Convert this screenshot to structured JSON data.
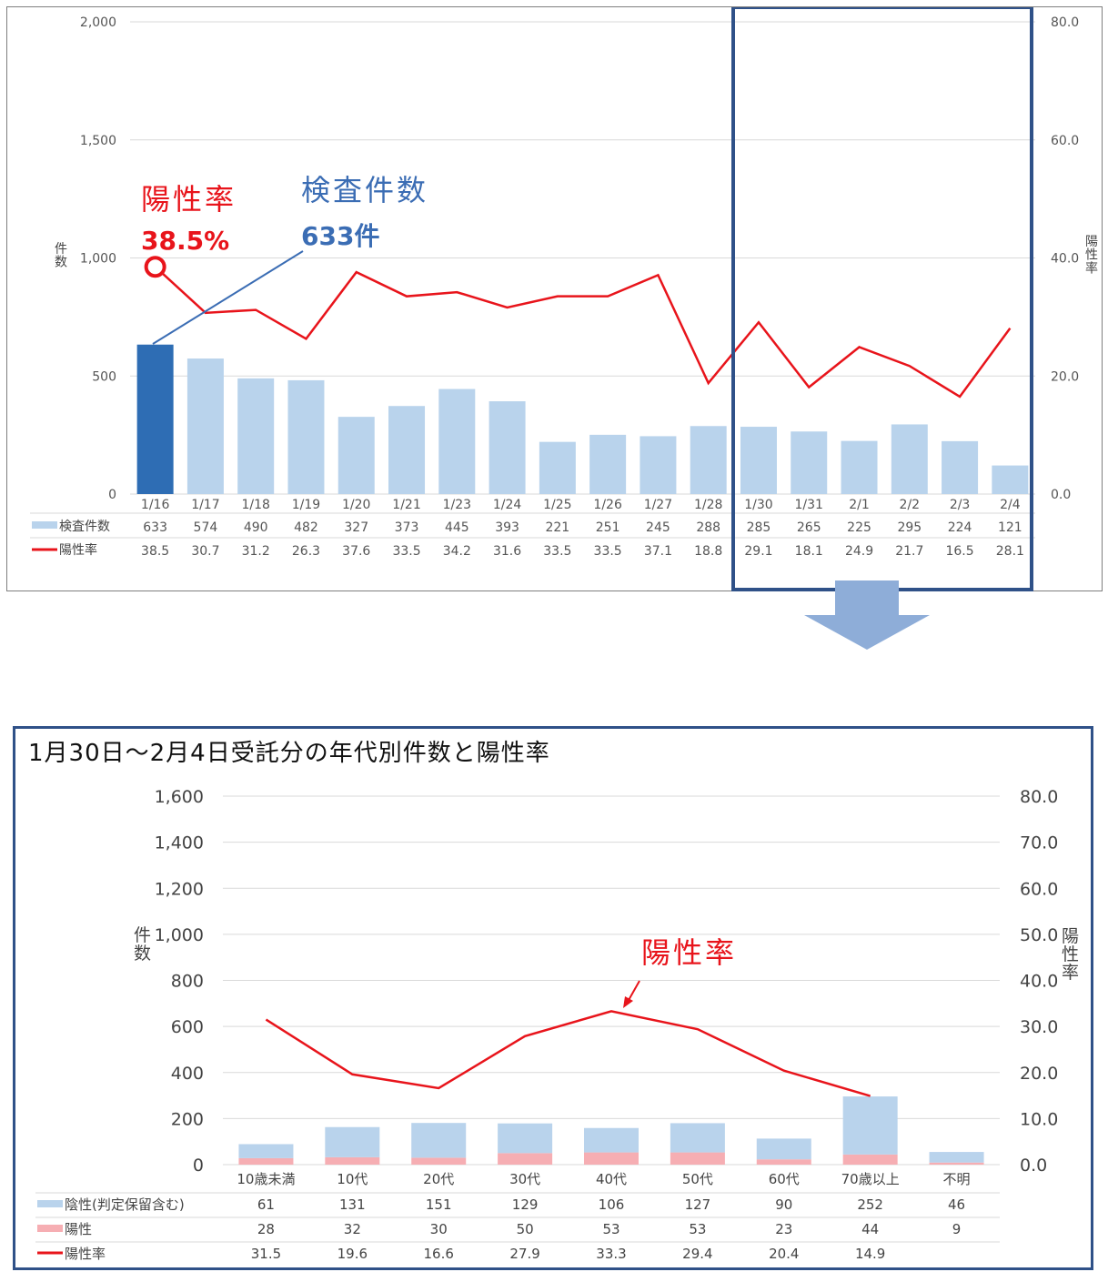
{
  "colors": {
    "bar_light": "#b9d3ec",
    "bar_highlight": "#2e6db4",
    "line_red": "#e8141b",
    "positive_pink": "#f6aeb3",
    "annotation_blue": "#3b6db4",
    "frame_navy": "#2f5188",
    "arrow_blue": "#8eadd8"
  },
  "top_chart": {
    "type": "bar",
    "y_left_ticks": [
      "2,000",
      "1,500",
      "1,000",
      "500",
      "0"
    ],
    "y_right_ticks": [
      "80.0",
      "60.0",
      "40.0",
      "20.0",
      "0.0"
    ],
    "y_left_label": "件数",
    "y_right_label": "陽性率",
    "legend_bar": "検査件数",
    "legend_line": "陽性率",
    "annotation_rate_label": "陽性率",
    "annotation_rate_value": "38.5%",
    "annotation_count_label": "検査件数",
    "annotation_count_value": "633件"
  },
  "bottom_chart": {
    "title": "1月30日～2月4日受託分の年代別件数と陽性率",
    "y_left_ticks": [
      "1,600",
      "1,400",
      "1,200",
      "1,000",
      "800",
      "600",
      "400",
      "200",
      "0"
    ],
    "y_right_ticks": [
      "80.0",
      "70.0",
      "60.0",
      "50.0",
      "40.0",
      "30.0",
      "20.0",
      "10.0",
      "0.0"
    ],
    "y_left_label": "件数",
    "y_right_label": "陽性率",
    "legend_negative": "陰性(判定保留含む)",
    "legend_positive": "陽性",
    "legend_rate": "陽性率",
    "annotation_rate_label": "陽性率"
  },
  "chart_data": [
    {
      "type": "bar",
      "categories": [
        "1/16",
        "1/17",
        "1/18",
        "1/19",
        "1/20",
        "1/21",
        "1/23",
        "1/24",
        "1/25",
        "1/26",
        "1/27",
        "1/28",
        "1/30",
        "1/31",
        "2/1",
        "2/2",
        "2/3",
        "2/4"
      ],
      "series": [
        {
          "name": "検査件数",
          "type": "bar",
          "axis": "left",
          "values": [
            633,
            574,
            490,
            482,
            327,
            373,
            445,
            393,
            221,
            251,
            245,
            288,
            285,
            265,
            225,
            295,
            224,
            121
          ]
        },
        {
          "name": "陽性率",
          "type": "line",
          "axis": "right",
          "values": [
            38.5,
            30.7,
            31.2,
            26.3,
            37.6,
            33.5,
            34.2,
            31.6,
            33.5,
            33.5,
            37.1,
            18.8,
            29.1,
            18.1,
            24.9,
            21.7,
            16.5,
            28.1
          ]
        }
      ],
      "ylim": [
        0,
        2000
      ],
      "y2lim": [
        0,
        80
      ],
      "ylabel": "件数",
      "y2label": "陽性率",
      "highlight_index": 0,
      "grid": true,
      "legend": "table-bottom"
    },
    {
      "type": "bar",
      "title": "1月30日～2月4日受託分の年代別件数と陽性率",
      "categories": [
        "10歳未満",
        "10代",
        "20代",
        "30代",
        "40代",
        "50代",
        "60代",
        "70歳以上",
        "不明"
      ],
      "series": [
        {
          "name": "陽性",
          "type": "stacked-bar",
          "axis": "left",
          "values": [
            28,
            32,
            30,
            50,
            53,
            53,
            23,
            44,
            9
          ]
        },
        {
          "name": "陰性(判定保留含む)",
          "type": "stacked-bar",
          "axis": "left",
          "values": [
            61,
            131,
            151,
            129,
            106,
            127,
            90,
            252,
            46
          ]
        },
        {
          "name": "陽性率",
          "type": "line",
          "axis": "right",
          "values": [
            31.5,
            19.6,
            16.6,
            27.9,
            33.3,
            29.4,
            20.4,
            14.9,
            null
          ]
        }
      ],
      "ylim": [
        0,
        1600
      ],
      "y2lim": [
        0,
        80
      ],
      "ylabel": "件数",
      "y2label": "陽性率",
      "grid": true,
      "legend": "table-bottom"
    }
  ]
}
